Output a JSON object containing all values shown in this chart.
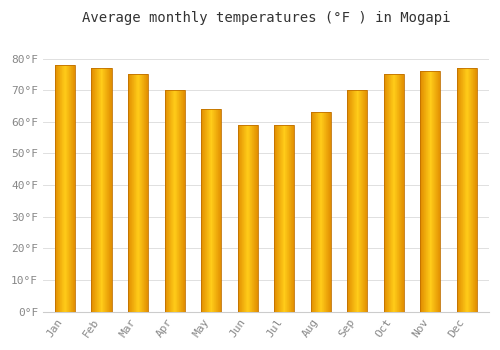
{
  "title": "Average monthly temperatures (°F ) in Mogapi",
  "months": [
    "Jan",
    "Feb",
    "Mar",
    "Apr",
    "May",
    "Jun",
    "Jul",
    "Aug",
    "Sep",
    "Oct",
    "Nov",
    "Dec"
  ],
  "values": [
    78,
    77,
    75,
    70,
    64,
    59,
    59,
    63,
    70,
    75,
    76,
    77
  ],
  "bar_color_light": "#FFB700",
  "bar_color_dark": "#E08000",
  "bar_edge_color": "#C07000",
  "background_color": "#FFFFFF",
  "plot_background": "#FFFFFF",
  "grid_color": "#E0E0E0",
  "yticks": [
    0,
    10,
    20,
    30,
    40,
    50,
    60,
    70,
    80
  ],
  "ylim": [
    0,
    88
  ],
  "title_fontsize": 10,
  "tick_fontsize": 8,
  "tick_color": "#888888",
  "bar_width": 0.55
}
